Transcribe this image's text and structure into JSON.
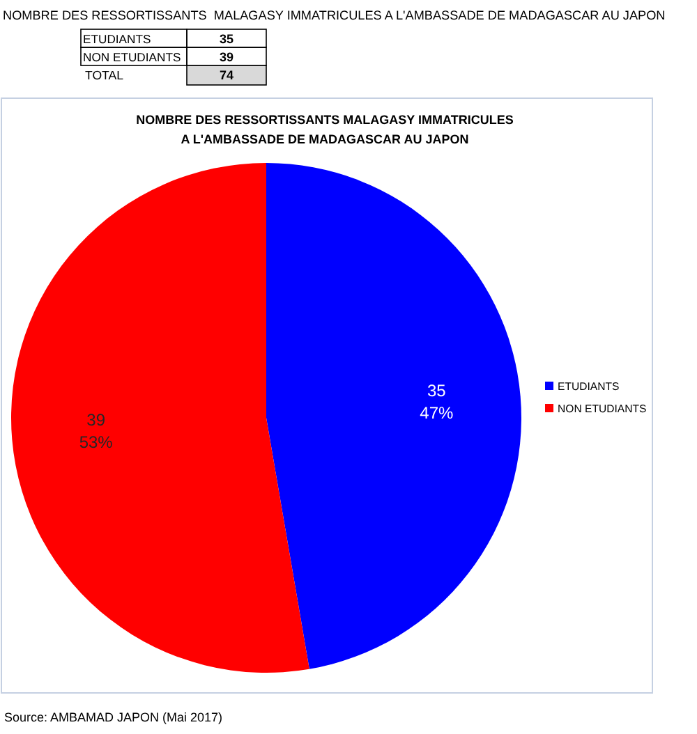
{
  "chart_data": [
    {
      "type": "other",
      "title": "NOMBRE DES RESSORTISSANTS  MALAGASY IMMATRICULES A L'AMBASSADE DE MADAGASCAR AU JAPON",
      "categories": [
        "ETUDIANTS",
        "NON ETUDIANTS"
      ],
      "values": [
        35,
        39
      ],
      "data_labels": true,
      "totals": [
        "74"
      ],
      "annotations": [
        "TOTAL"
      ]
    },
    {
      "type": "pie",
      "title": "NOMBRE DES RESSORTISSANTS MALAGASY IMMATRICULES A L'AMBASSADE DE MADAGASCAR AU JAPON",
      "categories": [
        "ETUDIANTS",
        "NON ETUDIANTS"
      ],
      "values": [
        35,
        39
      ],
      "colors": [
        "#0000ff",
        "#ff0000"
      ],
      "value_labels": [
        "35\n47%",
        "39\n53%"
      ],
      "legend": "right",
      "annotations": [
        "Source: AMBAMAD JAPON (Mai 2017)"
      ]
    }
  ]
}
